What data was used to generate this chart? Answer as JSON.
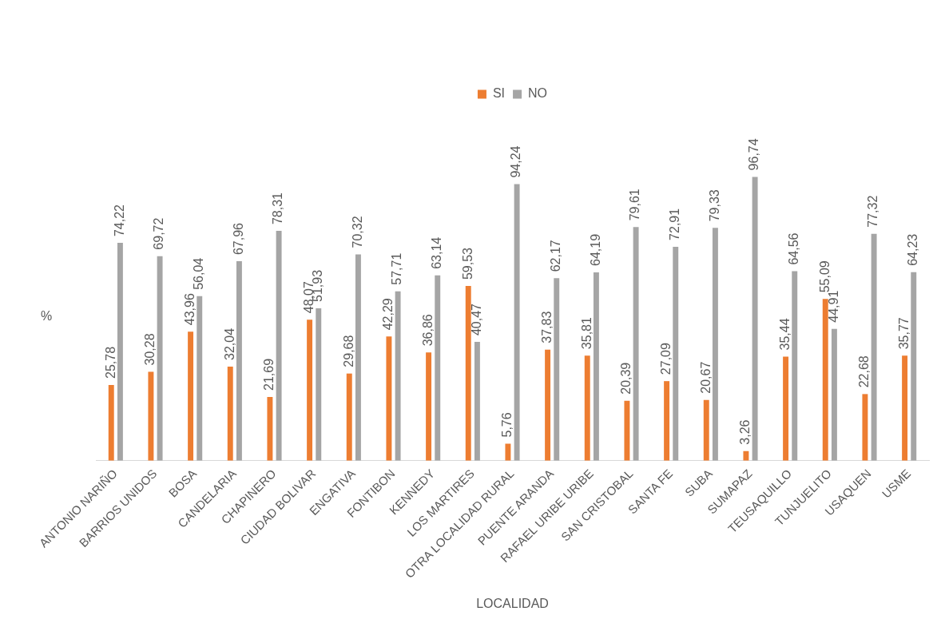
{
  "chart_data": {
    "type": "bar",
    "xlabel": "LOCALIDAD",
    "ylabel": "%",
    "legend": "top",
    "grid": false,
    "tick_labels": "x",
    "categories": [
      "ANTONIO NARIÑO",
      "BARRIOS UNIDOS",
      "BOSA",
      "CANDELARIA",
      "CHAPINERO",
      "CIUDAD BOLIVAR",
      "ENGATIVA",
      "FONTIBON",
      "KENNEDY",
      "LOS MARTIRES",
      "OTRA LOCALIDAD RURAL",
      "PUENTE ARANDA",
      "RAFAEL URIBE URIBE",
      "SAN CRISTOBAL",
      "SANTA FE",
      "SUBA",
      "SUMAPAZ",
      "TEUSAQUILLO",
      "TUNJUELITO",
      "USAQUEN",
      "USME"
    ],
    "series": [
      {
        "name": "SI",
        "color": "#ed7d31",
        "values": [
          25.78,
          30.28,
          43.96,
          32.04,
          21.69,
          48.07,
          29.68,
          42.29,
          36.86,
          59.53,
          5.76,
          37.83,
          35.81,
          20.39,
          27.09,
          20.67,
          3.26,
          35.44,
          55.09,
          22.68,
          35.77
        ],
        "value_labels": [
          "25,78",
          "30,28",
          "43,96",
          "32,04",
          "21,69",
          "48,07",
          "29,68",
          "42,29",
          "36,86",
          "59,53",
          "5,76",
          "37,83",
          "35,81",
          "20,39",
          "27,09",
          "20,67",
          "3,26",
          "35,44",
          "55,09",
          "22,68",
          "35,77"
        ]
      },
      {
        "name": "NO",
        "color": "#a5a5a5",
        "values": [
          74.22,
          69.72,
          56.04,
          67.96,
          78.31,
          51.93,
          70.32,
          57.71,
          63.14,
          40.47,
          94.24,
          62.17,
          64.19,
          79.61,
          72.91,
          79.33,
          96.74,
          64.56,
          44.91,
          77.32,
          64.23
        ],
        "value_labels": [
          "74,22",
          "69,72",
          "56,04",
          "67,96",
          "78,31",
          "51,93",
          "70,32",
          "57,71",
          "63,14",
          "40,47",
          "94,24",
          "62,17",
          "64,19",
          "79,61",
          "72,91",
          "79,33",
          "96,74",
          "64,56",
          "44,91",
          "77,32",
          "64,23"
        ]
      }
    ]
  }
}
